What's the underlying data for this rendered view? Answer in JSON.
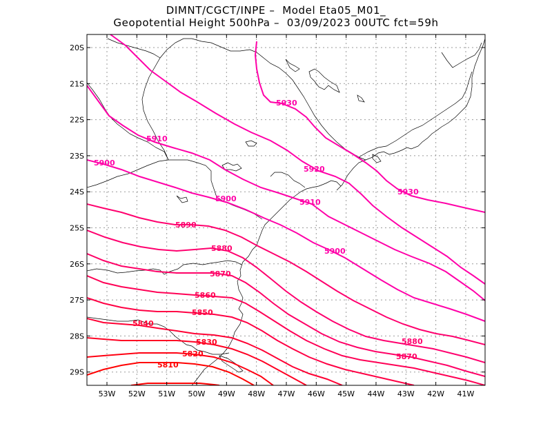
{
  "title_line1": "DIMNT/CGCT/INPE –  Model Eta05_M01_",
  "title_line2": "Geopotential Height 500hPa –  03/09/2023 00UTC fct=59h",
  "colors": {
    "high": "#ff00a8",
    "mid": "#ff0066",
    "low": "#ff0000",
    "coast": "#000000",
    "grid": "#999999"
  },
  "lat_labels": [
    "20S",
    "21S",
    "22S",
    "23S",
    "24S",
    "25S",
    "26S",
    "27S",
    "28S",
    "29S"
  ],
  "lon_labels": [
    "53W",
    "52W",
    "51W",
    "50W",
    "49W",
    "48W",
    "47W",
    "46W",
    "45W",
    "44W",
    "43W",
    "42W",
    "41W"
  ],
  "chart_data": {
    "type": "contour-map",
    "variable": "Geopotential Height 500hPa",
    "lon_range": [
      -53.6,
      -40.55
    ],
    "lat_range": [
      -29.4,
      -19.65
    ],
    "contours": [
      {
        "level": 5930,
        "label_text": "5930",
        "labels_shown": 2
      },
      {
        "level": 5920,
        "label_text": "5920",
        "labels_shown": 1
      },
      {
        "level": 5910,
        "label_text": "5910",
        "labels_shown": 2
      },
      {
        "level": 5900,
        "label_text": "5900",
        "labels_shown": 3
      },
      {
        "level": 5890,
        "label_text": "5890",
        "labels_shown": 1
      },
      {
        "level": 5880,
        "label_text": "5880",
        "labels_shown": 2
      },
      {
        "level": 5870,
        "label_text": "5870",
        "labels_shown": 2
      },
      {
        "level": 5860,
        "label_text": "5860",
        "labels_shown": 1
      },
      {
        "level": 5850,
        "label_text": "5850",
        "labels_shown": 1
      },
      {
        "level": 5840,
        "label_text": "5840",
        "labels_shown": 1
      },
      {
        "level": 5830,
        "label_text": "5830",
        "labels_shown": 1
      },
      {
        "level": 5820,
        "label_text": "5820",
        "labels_shown": 1
      },
      {
        "level": 5810,
        "label_text": "5810",
        "labels_shown": 1
      }
    ],
    "grid": true
  }
}
